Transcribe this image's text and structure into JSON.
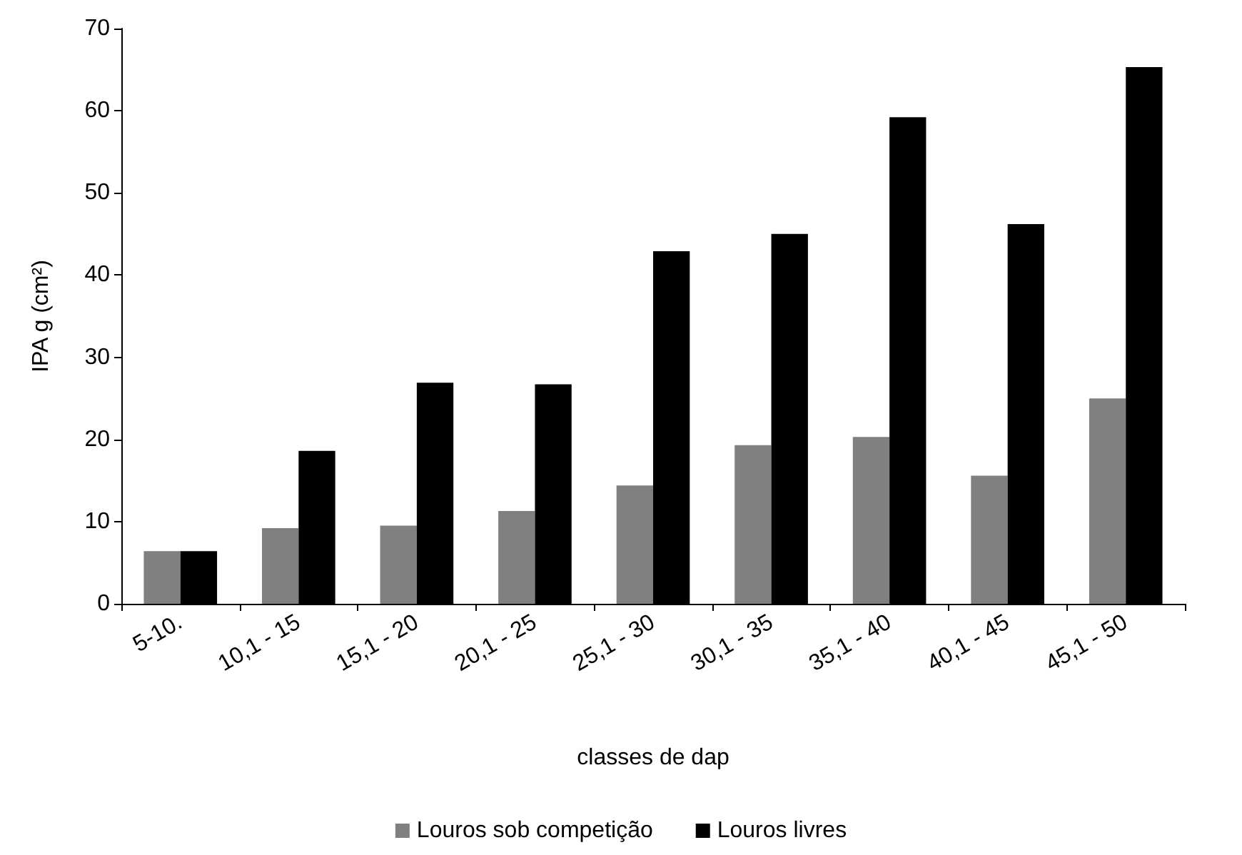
{
  "chart_data": {
    "type": "bar",
    "xlabel": "classes de dap",
    "ylabel": "IPA g (cm²)",
    "categories": [
      "5-10.",
      "10,1 - 15",
      "15,1 - 20",
      "20,1 - 25",
      "25,1 - 30",
      "30,1 - 35",
      "35,1 - 40",
      "40,1 - 45",
      "45,1 - 50"
    ],
    "series": [
      {
        "name": "Louros sob competição",
        "color": "#808080",
        "values": [
          6.4,
          9.2,
          9.5,
          11.3,
          14.4,
          19.3,
          20.3,
          15.6,
          25.0
        ]
      },
      {
        "name": "Louros livres",
        "color": "#000000",
        "values": [
          6.4,
          18.6,
          26.9,
          26.7,
          42.9,
          45.0,
          59.2,
          46.2,
          65.3
        ]
      }
    ],
    "ylim": [
      0,
      70
    ],
    "yticks": [
      0,
      10,
      20,
      30,
      40,
      50,
      60,
      70
    ],
    "grid": false,
    "legend": "bottom"
  }
}
